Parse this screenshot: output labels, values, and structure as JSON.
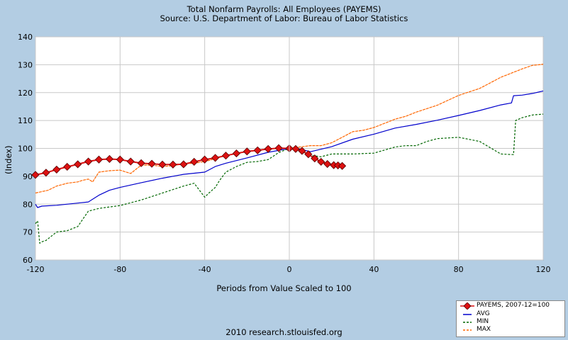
{
  "chart_data": {
    "type": "line",
    "title": "Total Nonfarm Payrolls: All Employees (PAYEMS)",
    "subtitle": "Source: U.S. Department of Labor: Bureau of Labor Statistics",
    "xlabel": "Periods from Value Scaled to 100",
    "ylabel": "(Index)",
    "xlim": [
      -120,
      120
    ],
    "ylim": [
      60,
      140
    ],
    "xticks": [
      -120,
      -80,
      -40,
      0,
      40,
      80,
      120
    ],
    "yticks": [
      60,
      70,
      80,
      90,
      100,
      110,
      120,
      130,
      140
    ],
    "grid": true,
    "legend_position": "bottom-right",
    "footer": "2010 research.stlouisfed.org",
    "series": [
      {
        "name": "PAYEMS, 2007-12=100",
        "color": "#dd1111",
        "style": "line-markers",
        "x": [
          -120,
          -115,
          -110,
          -105,
          -100,
          -95,
          -90,
          -85,
          -80,
          -75,
          -70,
          -65,
          -60,
          -55,
          -50,
          -45,
          -40,
          -35,
          -30,
          -25,
          -20,
          -15,
          -10,
          -5,
          0,
          3,
          6,
          9,
          12,
          15,
          18,
          21,
          23,
          25
        ],
        "y": [
          90.5,
          91.3,
          92.4,
          93.4,
          94.3,
          95.3,
          96.0,
          96.2,
          96.0,
          95.3,
          94.7,
          94.5,
          94.2,
          94.2,
          94.3,
          95.2,
          96.0,
          96.6,
          97.4,
          98.2,
          98.9,
          99.3,
          99.8,
          100.1,
          100.0,
          99.8,
          99.1,
          97.9,
          96.4,
          95.2,
          94.4,
          94.0,
          93.9,
          93.7
        ]
      },
      {
        "name": "AVG",
        "color": "#0000cc",
        "style": "solid",
        "x": [
          -120,
          -119,
          -117,
          -110,
          -100,
          -95,
          -90,
          -85,
          -80,
          -70,
          -60,
          -50,
          -40,
          -35,
          -30,
          -20,
          -10,
          0,
          5,
          10,
          20,
          30,
          40,
          50,
          60,
          70,
          80,
          90,
          100,
          105,
          106,
          110,
          115,
          120
        ],
        "y": [
          80.0,
          78.8,
          79.3,
          79.6,
          80.4,
          80.8,
          83.2,
          85.0,
          86.0,
          87.7,
          89.3,
          90.7,
          91.5,
          93.5,
          94.7,
          96.6,
          98.6,
          100.0,
          99.8,
          98.8,
          100.6,
          103.3,
          105.1,
          107.3,
          108.6,
          110.1,
          111.8,
          113.6,
          115.6,
          116.3,
          118.9,
          119.1,
          119.7,
          120.6
        ]
      },
      {
        "name": "MIN",
        "color": "#006600",
        "style": "dashed",
        "x": [
          -120,
          -119,
          -118,
          -117,
          -115,
          -110,
          -105,
          -100,
          -95,
          -90,
          -85,
          -80,
          -70,
          -60,
          -50,
          -45,
          -40,
          -38,
          -35,
          -33,
          -30,
          -25,
          -20,
          -15,
          -10,
          -5,
          0,
          5,
          10,
          15,
          20,
          30,
          40,
          50,
          55,
          60,
          65,
          70,
          80,
          90,
          100,
          105,
          106,
          107,
          110,
          115,
          120
        ],
        "y": [
          73.0,
          74.0,
          66.0,
          66.5,
          67.0,
          70.0,
          70.5,
          72.0,
          77.5,
          78.5,
          79.0,
          79.5,
          81.5,
          84.0,
          86.5,
          87.5,
          82.5,
          84.0,
          86.0,
          88.5,
          91.5,
          93.5,
          95.0,
          95.3,
          96.0,
          98.5,
          100.0,
          99.0,
          97.5,
          97.0,
          98.0,
          98.0,
          98.3,
          100.5,
          101.0,
          101.0,
          102.5,
          103.5,
          104.0,
          102.5,
          98.0,
          97.8,
          97.8,
          110.0,
          111.0,
          112.0,
          112.3
        ]
      },
      {
        "name": "MAX",
        "color": "#ff6600",
        "style": "dashed",
        "x": [
          -120,
          -117,
          -114,
          -110,
          -105,
          -100,
          -98,
          -95,
          -93,
          -90,
          -85,
          -80,
          -75,
          -70,
          -65,
          -60,
          -55,
          -50,
          -45,
          -40,
          -35,
          -30,
          -25,
          -20,
          -15,
          -10,
          -5,
          0,
          5,
          10,
          15,
          20,
          25,
          30,
          35,
          40,
          45,
          50,
          55,
          60,
          70,
          80,
          90,
          95,
          100,
          105,
          110,
          115,
          118,
          120
        ],
        "y": [
          84.0,
          84.5,
          85.0,
          86.5,
          87.5,
          88.0,
          88.5,
          89.0,
          88.0,
          91.5,
          92.0,
          92.2,
          91.0,
          94.0,
          94.0,
          93.5,
          93.8,
          94.5,
          94.7,
          95.3,
          96.3,
          97.4,
          98.2,
          98.9,
          99.3,
          99.8,
          100.1,
          100.0,
          100.5,
          101.0,
          101.0,
          102.0,
          104.0,
          106.0,
          106.5,
          107.5,
          109.0,
          110.5,
          111.5,
          113.0,
          115.5,
          119.0,
          121.5,
          123.5,
          125.5,
          127.0,
          128.5,
          129.8,
          130.0,
          130.2
        ]
      }
    ]
  }
}
